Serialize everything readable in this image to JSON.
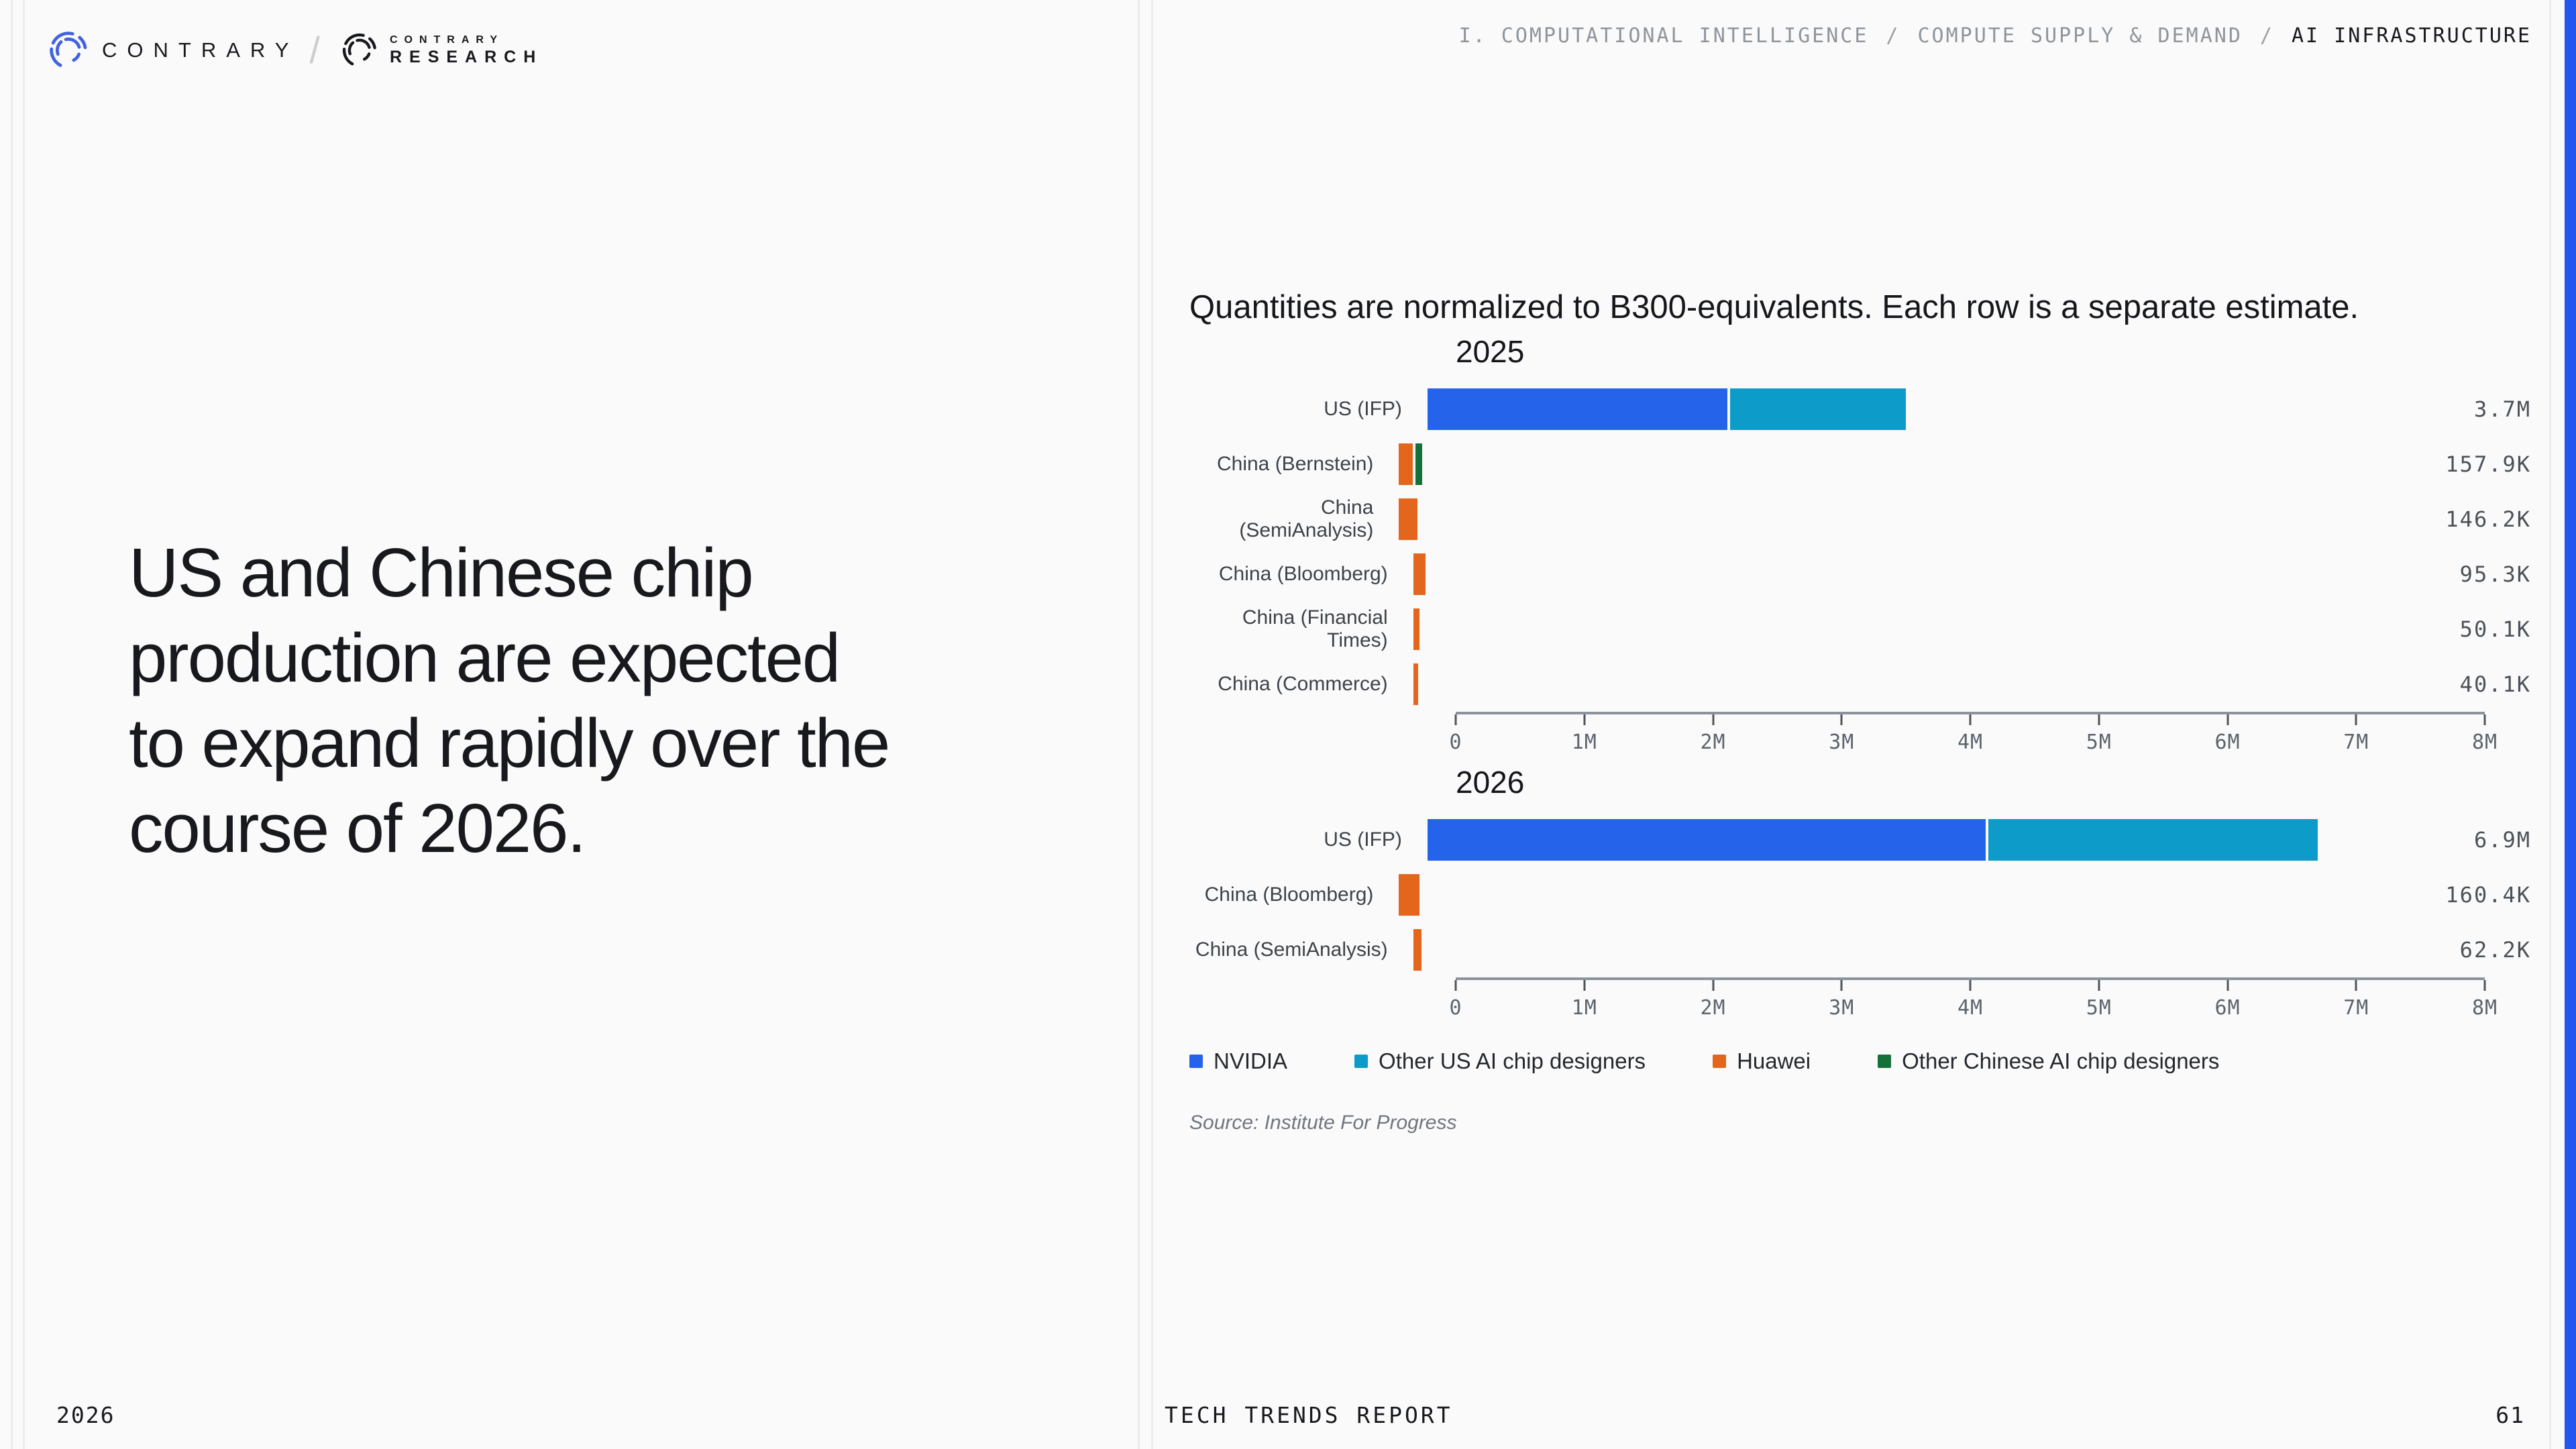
{
  "colors": {
    "background": "#fafafa",
    "accent_strip": "#2356ee",
    "divider_line": "#ebebeb"
  },
  "brand": {
    "name": "CONTRARY",
    "separator": "/",
    "research_top": "CONTRARY",
    "research_bottom": "RESEARCH"
  },
  "breadcrumb": {
    "separator": "/",
    "items": [
      "I. COMPUTATIONAL INTELLIGENCE",
      "COMPUTE SUPPLY & DEMAND",
      "AI INFRASTRUCTURE"
    ]
  },
  "headline": {
    "lines": [
      "US and Chinese chip",
      "production are expected",
      "to expand rapidly over the",
      "course of 2026."
    ]
  },
  "footer": {
    "year": "2026",
    "report": "TECH TRENDS REPORT",
    "page": "61"
  },
  "chart": {
    "title": "Quantities are normalized to B300-equivalents. Each row is a separate estimate.",
    "source": "Source: Institute For Progress",
    "legend": [
      {
        "label": "NVIDIA",
        "color": "#2563eb"
      },
      {
        "label": "Other US AI chip designers",
        "color": "#0d9bc9"
      },
      {
        "label": "Huawei",
        "color": "#e4661c"
      },
      {
        "label": "Other Chinese AI chip designers",
        "color": "#15713a"
      }
    ]
  },
  "chart_data": {
    "type": "bar",
    "orientation": "horizontal",
    "unit": "B300-equivalent chips",
    "title": "Quantities are normalized to B300-equivalents. Each row is a separate estimate.",
    "xlim": [
      0,
      8000000
    ],
    "x_ticks": [
      "0",
      "1M",
      "2M",
      "3M",
      "4M",
      "5M",
      "6M",
      "7M",
      "8M"
    ],
    "grid": false,
    "legend_position": "bottom",
    "series_colors": {
      "NVIDIA": "#2563eb",
      "Other US AI chip designers": "#0d9bc9",
      "Huawei": "#e4661c",
      "Other Chinese AI chip designers": "#15713a"
    },
    "groups": [
      {
        "title": "2025",
        "rows": [
          {
            "label": "US (IFP)",
            "total_label": "3.7M",
            "segments": [
              {
                "series": "NVIDIA",
                "value": 2330000
              },
              {
                "series": "Other US AI chip designers",
                "value": 1370000
              }
            ]
          },
          {
            "label": "China (Bernstein)",
            "total_label": "157.9K",
            "segments": [
              {
                "series": "Huawei",
                "value": 105000
              },
              {
                "series": "Other Chinese AI chip designers",
                "value": 52900
              }
            ]
          },
          {
            "label": "China (SemiAnalysis)",
            "total_label": "146.2K",
            "segments": [
              {
                "series": "Huawei",
                "value": 146200
              }
            ]
          },
          {
            "label": "China (Bloomberg)",
            "total_label": "95.3K",
            "segments": [
              {
                "series": "Huawei",
                "value": 95300
              }
            ]
          },
          {
            "label": "China (Financial Times)",
            "total_label": "50.1K",
            "segments": [
              {
                "series": "Huawei",
                "value": 50100
              }
            ]
          },
          {
            "label": "China (Commerce)",
            "total_label": "40.1K",
            "segments": [
              {
                "series": "Huawei",
                "value": 40100
              }
            ]
          }
        ]
      },
      {
        "title": "2026",
        "rows": [
          {
            "label": "US (IFP)",
            "total_label": "6.9M",
            "segments": [
              {
                "series": "NVIDIA",
                "value": 4340000
              },
              {
                "series": "Other US AI chip designers",
                "value": 2560000
              }
            ]
          },
          {
            "label": "China (Bloomberg)",
            "total_label": "160.4K",
            "segments": [
              {
                "series": "Huawei",
                "value": 160400
              }
            ]
          },
          {
            "label": "China (SemiAnalysis)",
            "total_label": "62.2K",
            "segments": [
              {
                "series": "Huawei",
                "value": 62200
              }
            ]
          }
        ]
      }
    ]
  }
}
